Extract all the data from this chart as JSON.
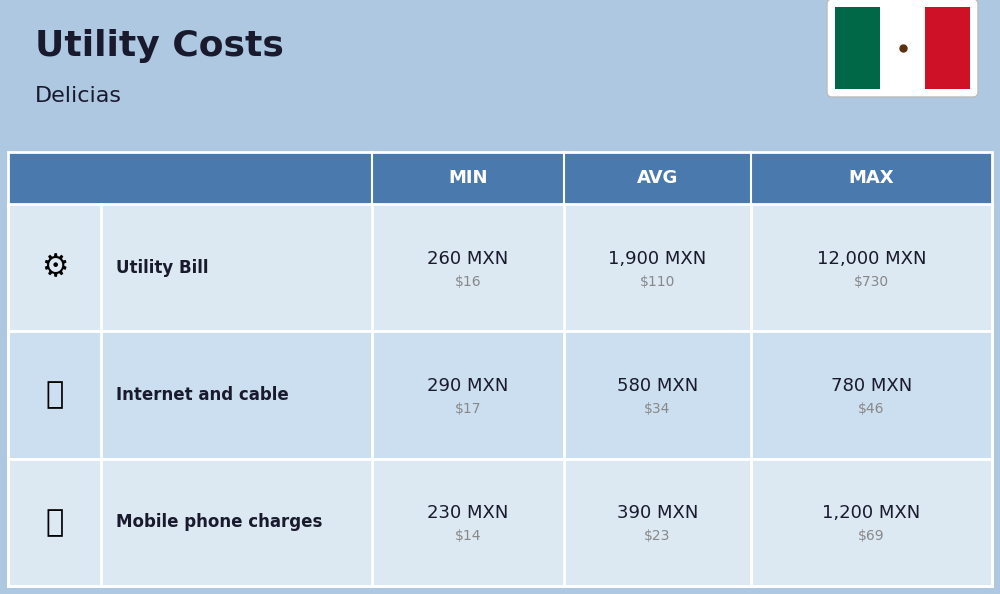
{
  "title": "Utility Costs",
  "subtitle": "Delicias",
  "background_color": "#adc8e0",
  "header_color": "#4a7aad",
  "header_text_color": "#ffffff",
  "row_colors": [
    "#dce8f2",
    "#ccdff0"
  ],
  "text_color": "#1a1a2e",
  "usd_color": "#888888",
  "col_headers": [
    "MIN",
    "AVG",
    "MAX"
  ],
  "rows": [
    {
      "label": "Utility Bill",
      "min_mxn": "260 MXN",
      "min_usd": "$16",
      "avg_mxn": "1,900 MXN",
      "avg_usd": "$110",
      "max_mxn": "12,000 MXN",
      "max_usd": "$730"
    },
    {
      "label": "Internet and cable",
      "min_mxn": "290 MXN",
      "min_usd": "$17",
      "avg_mxn": "580 MXN",
      "avg_usd": "$34",
      "max_mxn": "780 MXN",
      "max_usd": "$46"
    },
    {
      "label": "Mobile phone charges",
      "min_mxn": "230 MXN",
      "min_usd": "$14",
      "avg_mxn": "390 MXN",
      "avg_usd": "$23",
      "max_mxn": "1,200 MXN",
      "max_usd": "$69"
    }
  ],
  "flag_colors": [
    "#006847",
    "#ffffff",
    "#ce1126"
  ],
  "title_fontsize": 26,
  "subtitle_fontsize": 16,
  "header_fontsize": 13,
  "label_fontsize": 12,
  "value_fontsize": 13,
  "usd_fontsize": 10
}
